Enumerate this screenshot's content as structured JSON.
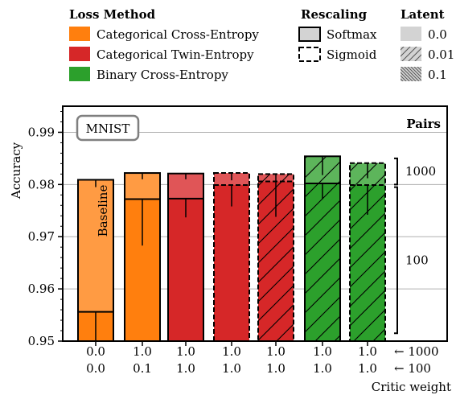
{
  "legend": {
    "loss_method": {
      "title": "Loss Method",
      "items": [
        {
          "label": "Categorical Cross-Entropy",
          "color": "#ff7f0e"
        },
        {
          "label": "Categorical Twin-Entropy",
          "color": "#d62728"
        },
        {
          "label": "Binary Cross-Entropy",
          "color": "#2ca02c"
        }
      ]
    },
    "rescaling": {
      "title": "Rescaling",
      "items": [
        {
          "label": "Softmax",
          "style": "solid"
        },
        {
          "label": "Sigmoid",
          "style": "dashed"
        }
      ]
    },
    "latent": {
      "title": "Latent",
      "items": [
        {
          "label": "0.0",
          "hatch": "none"
        },
        {
          "label": "0.01",
          "hatch": "single"
        },
        {
          "label": "0.1",
          "hatch": "dense"
        }
      ]
    }
  },
  "chart_data": {
    "type": "bar",
    "ylabel": "Accuracy",
    "xlabel": "Critic weight",
    "ylim": [
      0.95,
      0.995
    ],
    "yticks": [
      "0.95",
      "0.96",
      "0.97",
      "0.98",
      "0.99"
    ],
    "grid": true,
    "annotation_box": "MNIST",
    "pairs_label": "Pairs",
    "pairs_groups": [
      {
        "label": "1000",
        "from": 0.98,
        "to": 0.985
      },
      {
        "label": "100",
        "from": 0.9515,
        "to": 0.9795
      }
    ],
    "baseline_label": "Baseline",
    "x_row_labels": [
      "← 1000",
      "← 100"
    ],
    "categories": [
      {
        "top": "0.0",
        "bottom": "0.0"
      },
      {
        "top": "1.0",
        "bottom": "0.1"
      },
      {
        "top": "1.0",
        "bottom": "1.0"
      },
      {
        "top": "1.0",
        "bottom": "1.0"
      },
      {
        "top": "1.0",
        "bottom": "1.0"
      },
      {
        "top": "1.0",
        "bottom": "1.0"
      },
      {
        "top": "1.0",
        "bottom": "1.0"
      }
    ],
    "bars": [
      {
        "method": "Categorical Cross-Entropy",
        "rescaling": "Softmax",
        "latent": "0.0",
        "value_100": 0.9556,
        "err_100": [
          0.95,
          0.9556
        ],
        "value_1000": 0.9809,
        "err_1000": [
          0.9795,
          0.9809
        ]
      },
      {
        "method": "Categorical Cross-Entropy",
        "rescaling": "Softmax",
        "latent": "0.0",
        "value_100": 0.9772,
        "err_100": [
          0.9683,
          0.9772
        ],
        "value_1000": 0.9822,
        "err_1000": [
          0.981,
          0.9822
        ]
      },
      {
        "method": "Categorical Twin-Entropy",
        "rescaling": "Softmax",
        "latent": "0.0",
        "value_100": 0.9773,
        "err_100": [
          0.9737,
          0.9773
        ],
        "value_1000": 0.9821,
        "err_1000": [
          0.981,
          0.9821
        ]
      },
      {
        "method": "Categorical Twin-Entropy",
        "rescaling": "Sigmoid",
        "latent": "0.0",
        "value_100": 0.9799,
        "err_100": [
          0.9758,
          0.9799
        ],
        "value_1000": 0.9822,
        "err_1000": [
          0.9808,
          0.9822
        ]
      },
      {
        "method": "Categorical Twin-Entropy",
        "rescaling": "Sigmoid",
        "latent": "0.01",
        "value_100": 0.9806,
        "err_100": [
          0.9738,
          0.9806
        ],
        "value_1000": 0.982,
        "err_1000": [
          0.9806,
          0.982
        ]
      },
      {
        "method": "Binary Cross-Entropy",
        "rescaling": "Softmax",
        "latent": "0.01",
        "value_100": 0.9802,
        "err_100": [
          0.9772,
          0.9802
        ],
        "value_1000": 0.9854,
        "err_1000": [
          0.9818,
          0.9854
        ]
      },
      {
        "method": "Binary Cross-Entropy",
        "rescaling": "Sigmoid",
        "latent": "0.01",
        "value_100": 0.9799,
        "err_100": [
          0.9742,
          0.9799
        ],
        "value_1000": 0.9841,
        "err_1000": [
          0.9812,
          0.9841
        ]
      }
    ]
  }
}
